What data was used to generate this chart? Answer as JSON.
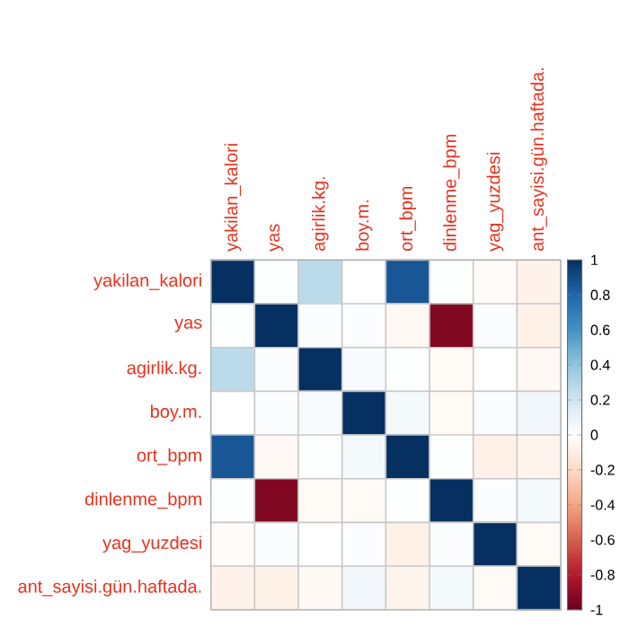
{
  "chart_data": {
    "type": "heatmap",
    "categories": [
      "yakilan_kalori",
      "yas",
      "agirlik.kg.",
      "boy.m.",
      "ort_bpm",
      "dinlenme_bpm",
      "yag_yuzdesi",
      "ant_sayisi.gün.haftada."
    ],
    "y_categories": [
      "yakilan_kalori",
      "yas",
      "agirlik.kg.",
      "boy.m.",
      "ort_bpm",
      "dinlenme_bpm",
      "yag_yuzdesi",
      "ant_sayisi.gün.haftada."
    ],
    "cells": [
      [
        1,
        0.01,
        0.27,
        0.0,
        0.86,
        0.01,
        -0.02,
        -0.07
      ],
      [
        0.01,
        1,
        0.02,
        0.02,
        -0.04,
        -0.93,
        0.02,
        -0.08
      ],
      [
        0.27,
        0.02,
        1,
        0.03,
        0.01,
        -0.03,
        0.0,
        -0.04
      ],
      [
        0.0,
        0.02,
        0.03,
        1,
        0.05,
        -0.03,
        0.02,
        0.06
      ],
      [
        0.86,
        -0.04,
        0.01,
        0.05,
        1,
        0.01,
        -0.08,
        -0.06
      ],
      [
        0.01,
        -0.93,
        -0.03,
        -0.03,
        0.01,
        1,
        0.02,
        0.05
      ],
      [
        -0.02,
        0.02,
        0.0,
        0.02,
        -0.08,
        0.02,
        1,
        -0.03
      ],
      [
        -0.07,
        -0.08,
        -0.04,
        0.06,
        -0.06,
        0.05,
        -0.03,
        1
      ]
    ],
    "clim": [
      -1,
      1
    ],
    "cticks": [
      -1,
      -0.8,
      -0.6,
      -0.4,
      -0.2,
      0,
      0.2,
      0.4,
      0.6,
      0.8,
      1
    ]
  }
}
